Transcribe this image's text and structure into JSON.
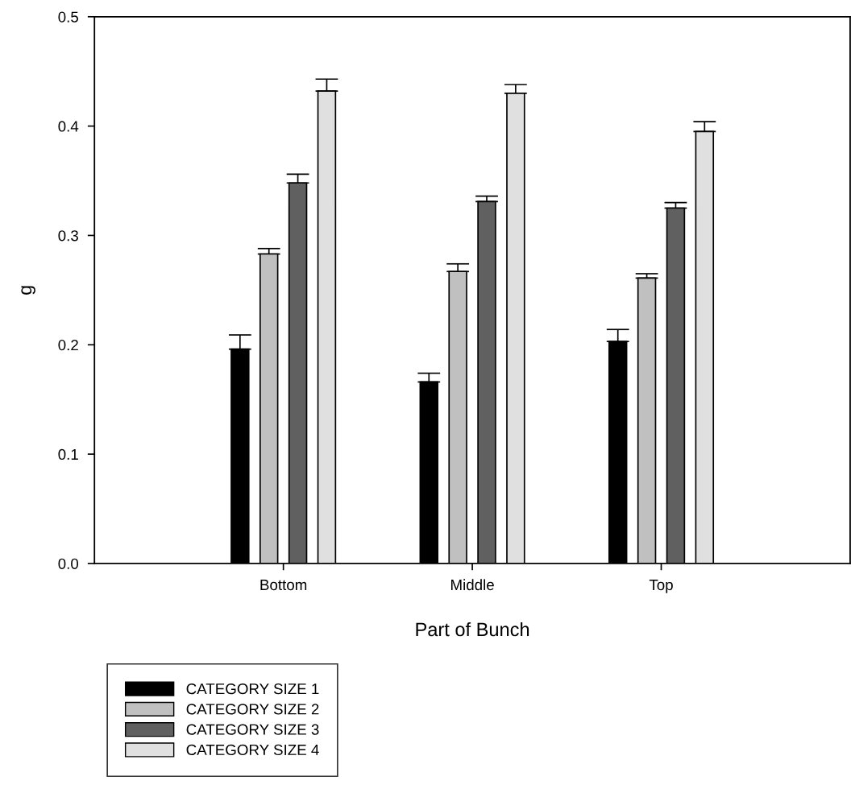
{
  "chart_data": {
    "type": "bar",
    "xlabel": "Part of Bunch",
    "ylabel": "g",
    "categories": [
      "Bottom",
      "Middle",
      "Top"
    ],
    "ylim": [
      0,
      0.5
    ],
    "yticks": [
      {
        "value": 0,
        "label": "0.0"
      },
      0.1,
      0.2,
      0.3,
      0.4,
      0.5
    ],
    "grid": false,
    "legend": "bottom left",
    "series": [
      {
        "name": "CATEGORY SIZE 1",
        "color": "#000000",
        "values": [
          0.196,
          0.166,
          0.203
        ],
        "errors": [
          [
            0.196,
            0.209
          ],
          [
            0.166,
            0.174
          ],
          [
            0.203,
            0.214
          ]
        ]
      },
      {
        "name": "CATEGORY SIZE 2",
        "color": "#c0c0c0",
        "values": [
          0.283,
          0.267,
          0.261
        ],
        "errors": [
          [
            0.283,
            0.288
          ],
          [
            0.267,
            0.274
          ],
          [
            0.261,
            0.265
          ]
        ]
      },
      {
        "name": "CATEGORY SIZE 3",
        "color": "#606060",
        "values": [
          0.348,
          0.331,
          0.325
        ],
        "errors": [
          [
            0.348,
            0.356
          ],
          [
            0.331,
            0.336
          ],
          [
            0.325,
            0.33
          ]
        ]
      },
      {
        "name": "CATEGORY SIZE 4",
        "color": "#e0e0e0",
        "values": [
          0.432,
          0.43,
          0.395
        ],
        "errors": [
          [
            0.432,
            0.443
          ],
          [
            0.43,
            0.438
          ],
          [
            0.395,
            0.404
          ]
        ]
      }
    ]
  }
}
